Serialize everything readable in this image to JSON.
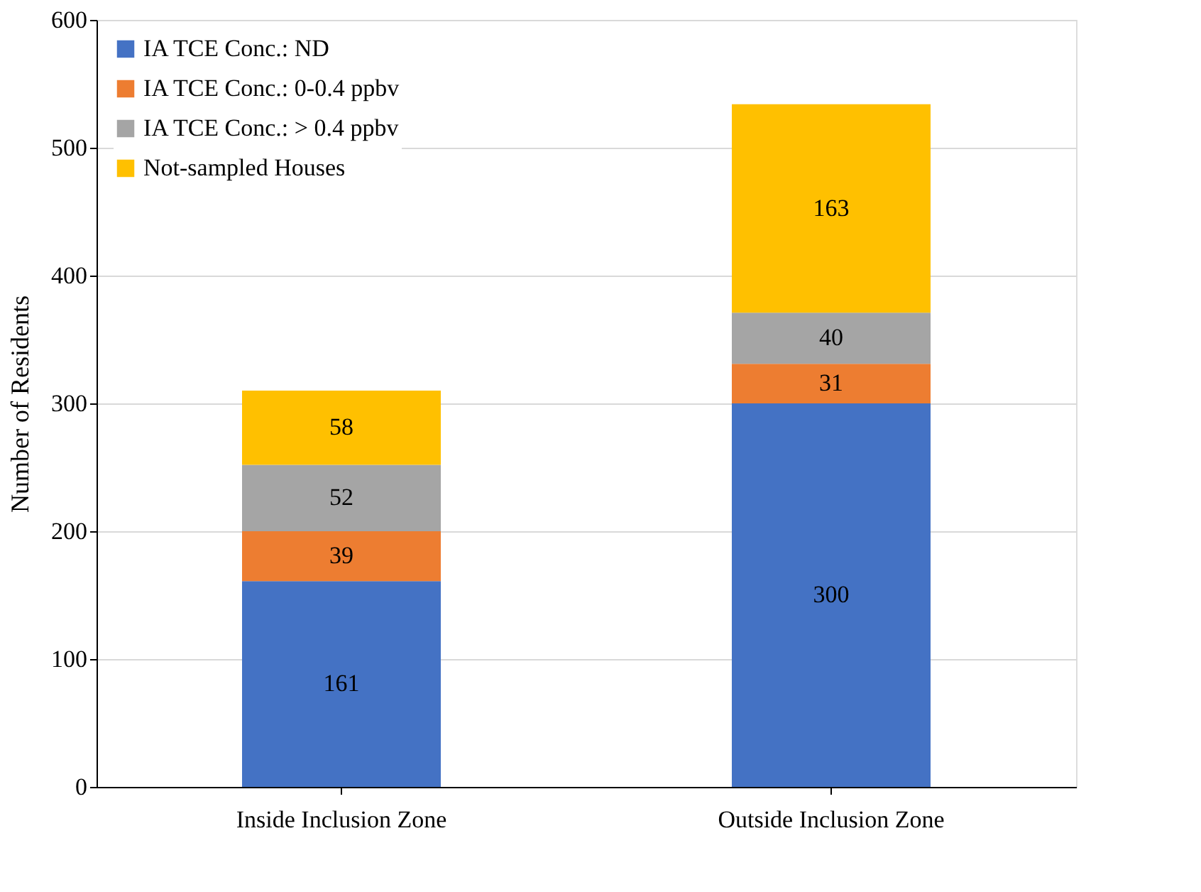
{
  "chart_data": {
    "type": "bar",
    "stacked": true,
    "ylabel": "Number of Residents",
    "categories": [
      "Inside Inclusion Zone",
      "Outside Inclusion Zone"
    ],
    "series": [
      {
        "name": "IA TCE Conc.: ND",
        "color": "#4472c4",
        "values": [
          161,
          300
        ]
      },
      {
        "name": "IA TCE Conc.: 0-0.4 ppbv",
        "color": "#ed7d31",
        "values": [
          39,
          31
        ]
      },
      {
        "name": "IA TCE Conc.: > 0.4 ppbv",
        "color": "#a5a5a5",
        "values": [
          52,
          40
        ]
      },
      {
        "name": "Not-sampled Houses",
        "color": "#ffc000",
        "values": [
          58,
          163
        ]
      }
    ],
    "ylim": [
      0,
      600
    ],
    "yticks": [
      0,
      100,
      200,
      300,
      400,
      500,
      600
    ],
    "grid": "y",
    "legend": "top left",
    "data_labels": true
  }
}
